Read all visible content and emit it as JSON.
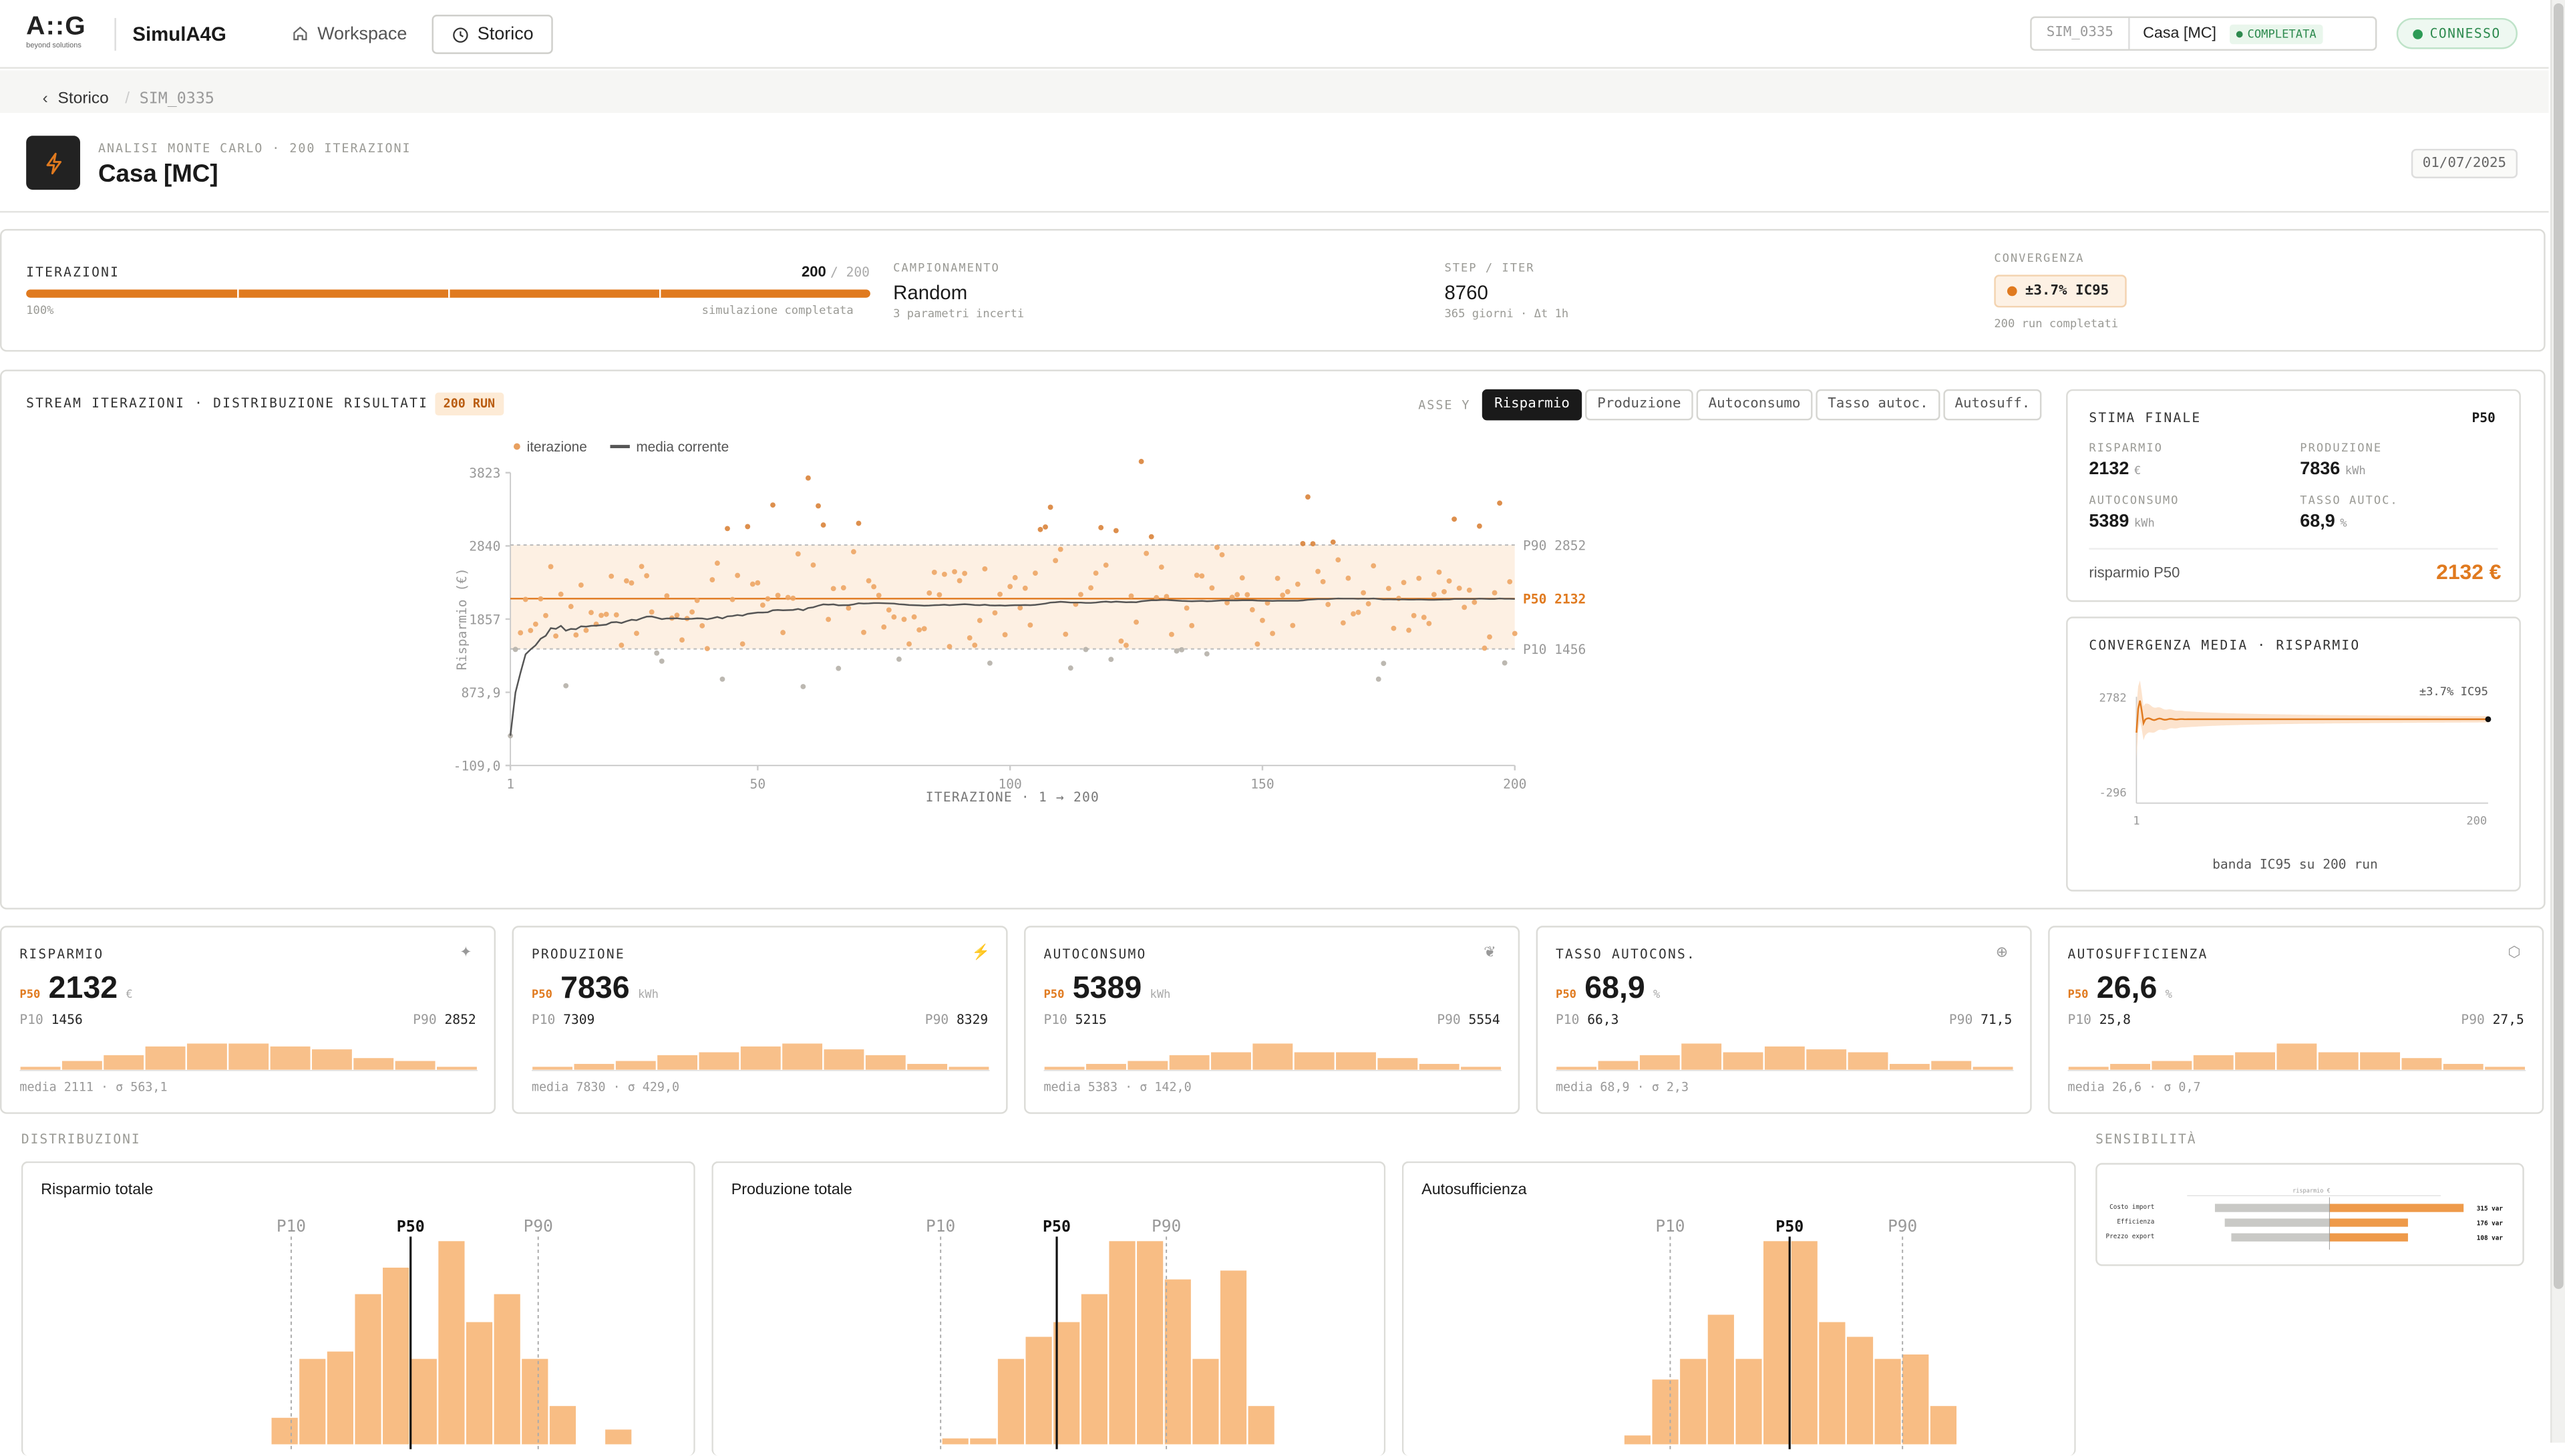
{
  "header": {
    "logo_text": "A::G",
    "logo_sub": "beyond solutions",
    "app_name": "SimulA4G",
    "nav": [
      {
        "label": "Workspace",
        "icon": "home-icon"
      },
      {
        "label": "Storico",
        "icon": "clock-icon"
      }
    ],
    "sim_id": "SIM_0335",
    "sim_name": "Casa [MC]",
    "sim_status": "COMPLETATA",
    "connection": "CONNESSO"
  },
  "breadcrumb": {
    "back": "Storico",
    "current": "SIM_0335"
  },
  "title": {
    "kicker": "ANALISI MONTE CARLO · 200 ITERAZIONI",
    "name": "Casa [MC]",
    "date": "01/07/2025"
  },
  "summary": {
    "iter": {
      "label": "ITERAZIONI",
      "done": "200",
      "total": "/ 200",
      "pct": "100%",
      "status": "simulazione completata",
      "progress": 1.0
    },
    "sampling": {
      "label": "CAMPIONAMENTO",
      "value": "Random",
      "sub": "3 parametri incerti"
    },
    "step": {
      "label": "STEP / ITER",
      "value": "8760",
      "sub": "365 giorni · Δt 1h"
    },
    "conv": {
      "label": "CONVERGENZA",
      "value": "±3.7% IC95",
      "sub": "200 run completati"
    }
  },
  "stream": {
    "title": "STREAM ITERAZIONI · DISTRIBUZIONE RISULTATI",
    "badge": "200 RUN",
    "axes_label": "ASSE Y",
    "axes": [
      "Risparmio",
      "Produzione",
      "Autoconsumo",
      "Tasso autoc.",
      "Autosuff."
    ],
    "legend_points": "iterazione",
    "legend_line": "media corrente",
    "ylabel": "Risparmio (€)",
    "xlabel": "ITERAZIONE · 1 → 200",
    "yticks": [
      "3823",
      "2840",
      "1857",
      "873,9",
      "-109,0"
    ],
    "xticks": [
      "1",
      "50",
      "100",
      "150",
      "200"
    ],
    "p90_label": "P90 2852",
    "p50_label": "P50 2132",
    "p10_label": "P10 1456"
  },
  "chart_data": [
    {
      "type": "scatter",
      "title": "STREAM ITERAZIONI · DISTRIBUZIONE RISULTATI",
      "xlabel": "ITERAZIONE · 1 → 200",
      "ylabel": "Risparmio (€)",
      "xlim": [
        1,
        200
      ],
      "ylim": [
        -109,
        3823
      ],
      "p90": 2852,
      "p50": 2132,
      "p10": 1456,
      "series": [
        {
          "name": "iterazione"
        },
        {
          "name": "media corrente"
        }
      ]
    },
    {
      "type": "line",
      "title": "CONVERGENZA MEDIA · RISPARMIO",
      "x_range": [
        1,
        200
      ],
      "ylim": [
        -296,
        2782
      ],
      "final": 2132,
      "ci_label": "±3.7% IC95"
    }
  ],
  "final": {
    "title": "STIMA FINALE",
    "tag": "P50",
    "items": [
      {
        "label": "RISPARMIO",
        "value": "2132",
        "unit": "€"
      },
      {
        "label": "PRODUZIONE",
        "value": "7836",
        "unit": "kWh"
      },
      {
        "label": "AUTOCONSUMO",
        "value": "5389",
        "unit": "kWh"
      },
      {
        "label": "TASSO AUTOC.",
        "value": "68,9",
        "unit": "%"
      }
    ],
    "footer_label": "risparmio P50",
    "footer_value": "2132 €"
  },
  "convergence": {
    "title": "CONVERGENZA MEDIA · RISPARMIO",
    "y_top": "2782",
    "y_bottom": "-296",
    "x_start": "1",
    "x_end": "200",
    "ci": "±3.7% IC95",
    "caption": "banda IC95 su 200 run"
  },
  "kpis": [
    {
      "label": "RISPARMIO",
      "p50": "2132",
      "unit": "€",
      "p10": "1456",
      "p90": "2852",
      "stats": "media 2111 · σ 563,1",
      "icon": "sparkle-icon",
      "hist": [
        1,
        3,
        5,
        8,
        9,
        9,
        8,
        7,
        4,
        3,
        1
      ]
    },
    {
      "label": "PRODUZIONE",
      "p50": "7836",
      "unit": "kWh",
      "p10": "7309",
      "p90": "8329",
      "stats": "media 7830 · σ 429,0",
      "icon": "bolt-icon",
      "hist": [
        1,
        2,
        3,
        5,
        6,
        8,
        9,
        7,
        5,
        2,
        1
      ]
    },
    {
      "label": "AUTOCONSUMO",
      "p50": "5389",
      "unit": "kWh",
      "p10": "5215",
      "p90": "5554",
      "stats": "media 5383 · σ 142,0",
      "icon": "leaf-icon",
      "hist": [
        1,
        2,
        3,
        5,
        6,
        9,
        6,
        6,
        4,
        2,
        1
      ]
    },
    {
      "label": "TASSO AUTOCONS.",
      "p50": "68,9",
      "unit": "%",
      "p10": "66,3",
      "p90": "71,5",
      "stats": "media 68,9 · σ 2,3",
      "icon": "target-icon",
      "hist": [
        1,
        3,
        5,
        9,
        6,
        8,
        7,
        6,
        2,
        3,
        1
      ]
    },
    {
      "label": "AUTOSUFFICIENZA",
      "p50": "26,6",
      "unit": "%",
      "p10": "25,8",
      "p90": "27,5",
      "stats": "media 26,6 · σ 0,7",
      "icon": "cube-icon",
      "hist": [
        1,
        2,
        3,
        5,
        6,
        9,
        6,
        6,
        4,
        2,
        1
      ]
    }
  ],
  "distrib": {
    "section": "DISTRIBUZIONI",
    "sens_section": "SENSIBILITÀ",
    "p10": "P10",
    "p50": "P50",
    "p90": "P90",
    "panels": [
      {
        "title": "Risparmio totale",
        "bars": [
          0.18,
          0.58,
          0.63,
          1.02,
          1.2,
          0.58,
          1.38,
          0.83,
          1.02,
          0.58,
          0.26,
          0,
          0.1
        ]
      },
      {
        "title": "Produzione totale",
        "bars": [
          0.04,
          0.04,
          0.58,
          0.73,
          0.83,
          1.02,
          1.38,
          1.38,
          1.12,
          0.58,
          1.18,
          0.26
        ]
      },
      {
        "title": "Autosufficienza",
        "bars": [
          0.06,
          0.44,
          0.58,
          0.88,
          0.58,
          1.38,
          1.38,
          0.83,
          0.73,
          0.58,
          0.61,
          0.26
        ]
      }
    ]
  },
  "sensitivity": {
    "axis": "risparmio €",
    "rows": [
      {
        "label": "Costo import",
        "value": "315 var"
      },
      {
        "label": "Efficienza",
        "value": "176 var"
      },
      {
        "label": "Prezzo export",
        "value": "108 var"
      }
    ]
  }
}
